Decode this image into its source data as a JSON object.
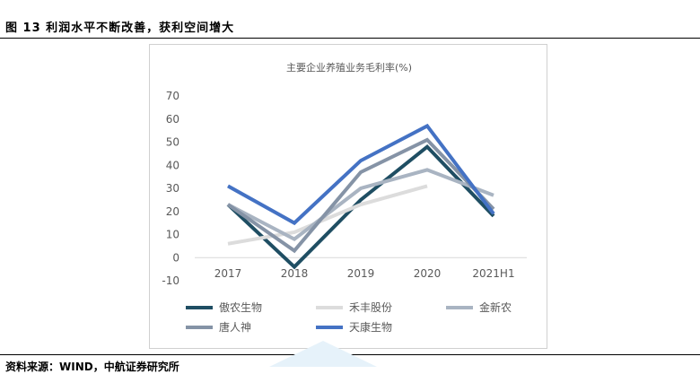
{
  "figure": {
    "caption": "图 13 利润水平不断改善，获利空间增大",
    "source": "资料来源：WIND，中航证券研究所"
  },
  "chart_data": {
    "type": "line",
    "title": "主要企业养殖业务毛利率(%)",
    "categories": [
      "2017",
      "2018",
      "2019",
      "2020",
      "2021H1"
    ],
    "ylim": [
      -10,
      70
    ],
    "yticks": [
      70,
      60,
      50,
      40,
      30,
      20,
      10,
      0,
      -10
    ],
    "legend_position": "bottom",
    "series": [
      {
        "name": "傲农生物",
        "color": "#1f4e63",
        "values": [
          23,
          -4,
          25,
          48,
          18
        ]
      },
      {
        "name": "禾丰股份",
        "color": "#dcdcdc",
        "values": [
          6,
          11,
          23,
          31,
          null
        ]
      },
      {
        "name": "金新农",
        "color": "#a9b4c2",
        "values": [
          23,
          8,
          30,
          38,
          27
        ]
      },
      {
        "name": "唐人神",
        "color": "#8593a6",
        "values": [
          23,
          3,
          37,
          51,
          21
        ]
      },
      {
        "name": "天康生物",
        "color": "#4472c4",
        "values": [
          31,
          15,
          42,
          57,
          19
        ]
      }
    ]
  }
}
